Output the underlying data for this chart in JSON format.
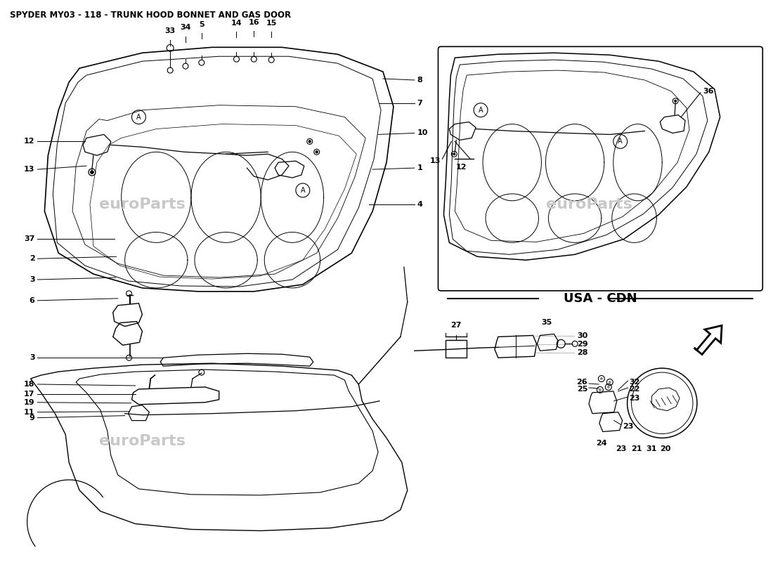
{
  "title": "SPYDER MY03 - 118 - TRUNK HOOD BONNET AND GAS DOOR",
  "title_fontsize": 8.5,
  "background_color": "#ffffff",
  "text_color": "#000000",
  "watermark_text": "euroParts",
  "usa_cdn_label": "USA - CDN",
  "line_color": "#000000",
  "light_gray": "#d0d0d0"
}
